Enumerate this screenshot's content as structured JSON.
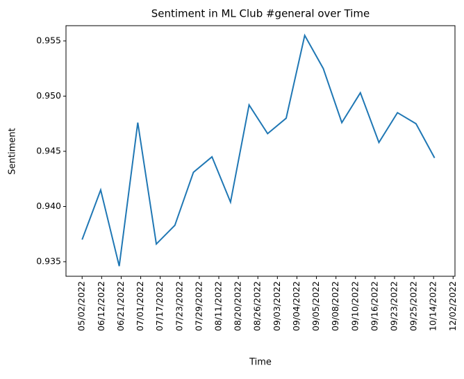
{
  "chart_data": {
    "type": "line",
    "title": "Sentiment in ML Club #general over Time",
    "x_label": "Time",
    "y_label": "Sentiment",
    "x": [
      0,
      1,
      2,
      3,
      4,
      5,
      6,
      7,
      8,
      9,
      10,
      11,
      12,
      13,
      14,
      15,
      16,
      17,
      18,
      19
    ],
    "series": [
      {
        "color": "#1f77b4",
        "values": [
          0.937,
          0.9415,
          0.9346,
          0.9476,
          0.9366,
          0.9383,
          0.9431,
          0.9445,
          0.9404,
          0.9492,
          0.9466,
          0.948,
          0.9555,
          0.9525,
          0.9476,
          0.9503,
          0.9458,
          0.9485,
          0.9475,
          0.9444
        ]
      }
    ],
    "xlim": [
      -0.87,
      20.1
    ],
    "xticks": [
      {
        "value": 0,
        "label": "05/02/2022"
      },
      {
        "value": 1.0526,
        "label": "06/12/2022"
      },
      {
        "value": 2.1053,
        "label": "06/21/2022"
      },
      {
        "value": 3.1579,
        "label": "07/01/2022"
      },
      {
        "value": 4.2105,
        "label": "07/17/2022"
      },
      {
        "value": 5.2632,
        "label": "07/23/2022"
      },
      {
        "value": 6.3158,
        "label": "07/29/2022"
      },
      {
        "value": 7.3684,
        "label": "08/11/2022"
      },
      {
        "value": 8.4211,
        "label": "08/20/2022"
      },
      {
        "value": 9.4737,
        "label": "08/26/2022"
      },
      {
        "value": 10.5263,
        "label": "09/03/2022"
      },
      {
        "value": 11.5789,
        "label": "09/04/2022"
      },
      {
        "value": 12.6316,
        "label": "09/05/2022"
      },
      {
        "value": 13.6842,
        "label": "09/08/2022"
      },
      {
        "value": 14.7368,
        "label": "09/10/2022"
      },
      {
        "value": 15.7895,
        "label": "09/16/2022"
      },
      {
        "value": 16.8421,
        "label": "09/23/2022"
      },
      {
        "value": 17.8947,
        "label": "09/25/2022"
      },
      {
        "value": 18.9474,
        "label": "10/14/2022"
      },
      {
        "value": 20,
        "label": "12/02/2022"
      }
    ],
    "ylim": [
      0.93368,
      0.95638
    ],
    "yticks": [
      0.935,
      {
        "value": 0.94,
        "label": "0.940"
      },
      0.945,
      {
        "value": 0.95,
        "label": "0.950"
      },
      0.955
    ]
  }
}
